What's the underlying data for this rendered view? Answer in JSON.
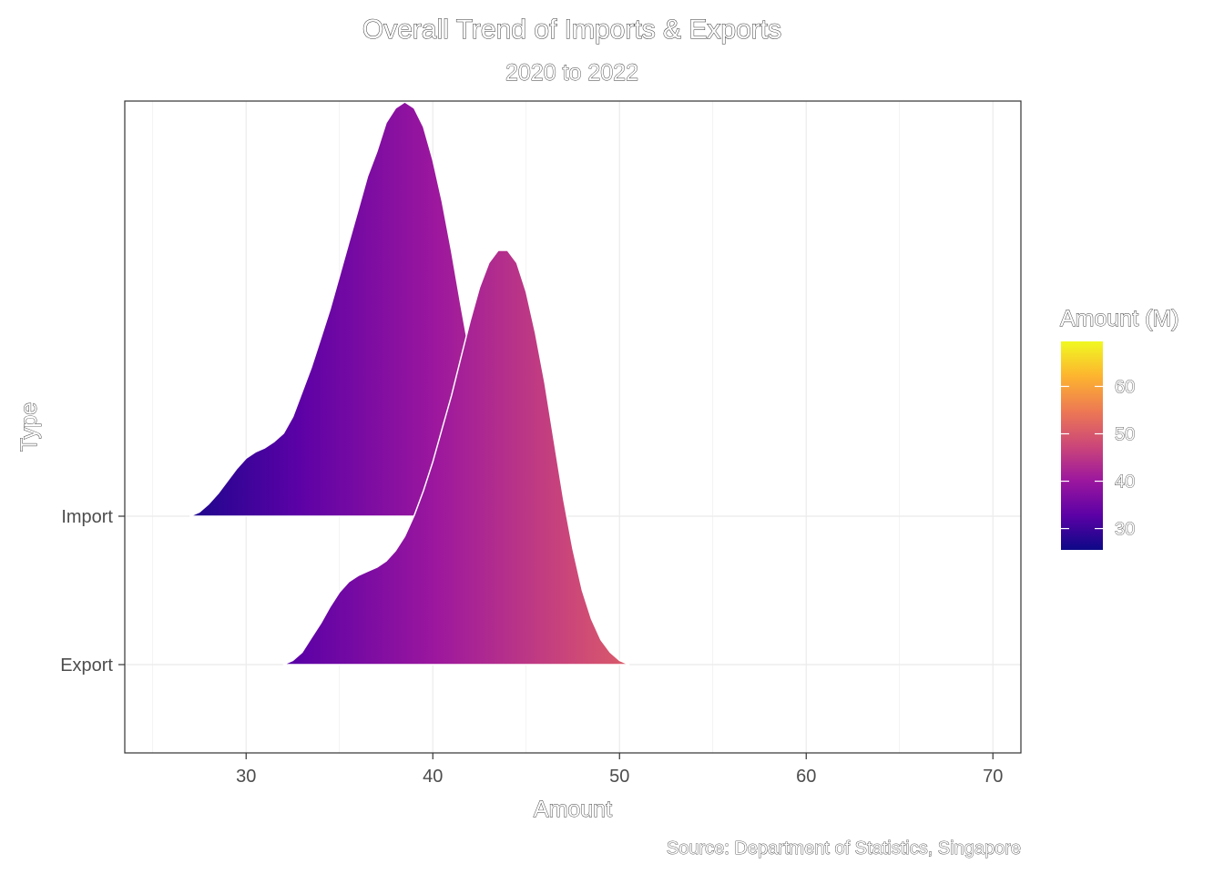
{
  "chart_data": {
    "type": "area",
    "subtype": "ridgeline-density",
    "title": "Overall Trend of Imports & Exports",
    "subtitle": "2020 to 2022",
    "xlabel": "Amount",
    "ylabel": "Type",
    "caption": "Source: Department of Statistics, Singapore",
    "xlim": [
      23.5,
      71.5
    ],
    "x_ticks": [
      30,
      40,
      50,
      60,
      70
    ],
    "categories": [
      "Export",
      "Import"
    ],
    "grid": true,
    "legend": {
      "title": "Amount (M)",
      "position": "right",
      "range": [
        25.5,
        69.5
      ],
      "ticks": [
        30,
        40,
        50,
        60
      ],
      "palette": [
        "#0d0887",
        "#5c01a6",
        "#9c179e",
        "#cc4778",
        "#ed7953",
        "#fdb42f",
        "#f0f921"
      ]
    },
    "series": [
      {
        "name": "Import",
        "x": [
          27.0,
          27.5,
          28.0,
          28.5,
          29.0,
          29.5,
          30.0,
          30.5,
          31.0,
          31.5,
          32.0,
          32.5,
          33.0,
          33.5,
          34.0,
          34.5,
          35.0,
          35.5,
          36.0,
          36.5,
          37.0,
          37.5,
          38.0,
          38.5,
          39.0,
          39.5,
          40.0,
          40.5,
          41.0,
          41.5,
          42.0
        ],
        "density": [
          0.0,
          0.01,
          0.03,
          0.055,
          0.085,
          0.115,
          0.14,
          0.155,
          0.165,
          0.18,
          0.2,
          0.24,
          0.3,
          0.36,
          0.43,
          0.5,
          0.58,
          0.66,
          0.74,
          0.82,
          0.88,
          0.95,
          0.985,
          1.0,
          0.985,
          0.94,
          0.86,
          0.76,
          0.64,
          0.51,
          0.385
        ]
      },
      {
        "name": "Export",
        "x": [
          32.0,
          32.5,
          33.0,
          33.5,
          34.0,
          34.5,
          35.0,
          35.5,
          36.0,
          36.5,
          37.0,
          37.5,
          38.0,
          38.5,
          39.0,
          39.5,
          40.0,
          40.5,
          41.0,
          41.5,
          42.0,
          42.5,
          43.0,
          43.5,
          44.0,
          44.5,
          45.0,
          45.5,
          46.0,
          46.5,
          47.0,
          47.5,
          48.0,
          48.5,
          49.0,
          49.5,
          50.0,
          50.5
        ],
        "density": [
          0.0,
          0.01,
          0.03,
          0.065,
          0.1,
          0.14,
          0.175,
          0.2,
          0.215,
          0.225,
          0.235,
          0.25,
          0.275,
          0.31,
          0.36,
          0.42,
          0.49,
          0.57,
          0.65,
          0.74,
          0.83,
          0.91,
          0.97,
          1.0,
          1.0,
          0.97,
          0.9,
          0.8,
          0.68,
          0.54,
          0.4,
          0.28,
          0.18,
          0.11,
          0.06,
          0.03,
          0.01,
          0.0
        ]
      }
    ]
  }
}
